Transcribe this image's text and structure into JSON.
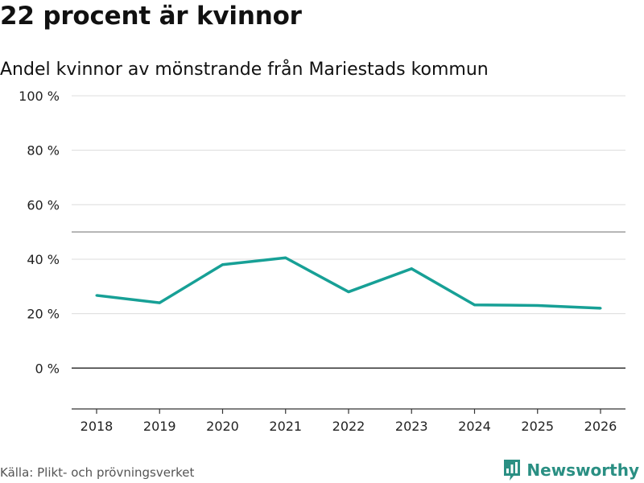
{
  "header": {
    "title": "22 procent är kvinnor",
    "subtitle": "Andel kvinnor av mönstrande från Mariestads kommun"
  },
  "footer": {
    "source": "Källa: Plikt- och prövningsverket",
    "brand": "Newsworthy",
    "brand_icon": "bar-chart-speech-bubble-icon"
  },
  "colors": {
    "line": "#17a096",
    "grid": "#dcdcdc",
    "reference": "#8a8a8a",
    "zero": "#333333",
    "brand": "#2a8f83"
  },
  "chart_data": {
    "type": "line",
    "title": "22 procent är kvinnor",
    "subtitle": "Andel kvinnor av mönstrande från Mariestads kommun",
    "xlabel": "",
    "ylabel": "",
    "categories": [
      "2018",
      "2019",
      "2020",
      "2021",
      "2022",
      "2023",
      "2024",
      "2025",
      "2026"
    ],
    "series": [
      {
        "name": "Andel kvinnor",
        "values": [
          26.7,
          24.0,
          38.0,
          40.5,
          28.0,
          36.5,
          23.2,
          23.0,
          22.0
        ]
      }
    ],
    "ylim": [
      -15,
      100
    ],
    "yticks": [
      0,
      20,
      40,
      60,
      80,
      100
    ],
    "ytick_labels": [
      "0 %",
      "20 %",
      "40 %",
      "60 %",
      "80 %",
      "100 %"
    ],
    "reference_line": 50,
    "grid": true,
    "legend": "none"
  }
}
